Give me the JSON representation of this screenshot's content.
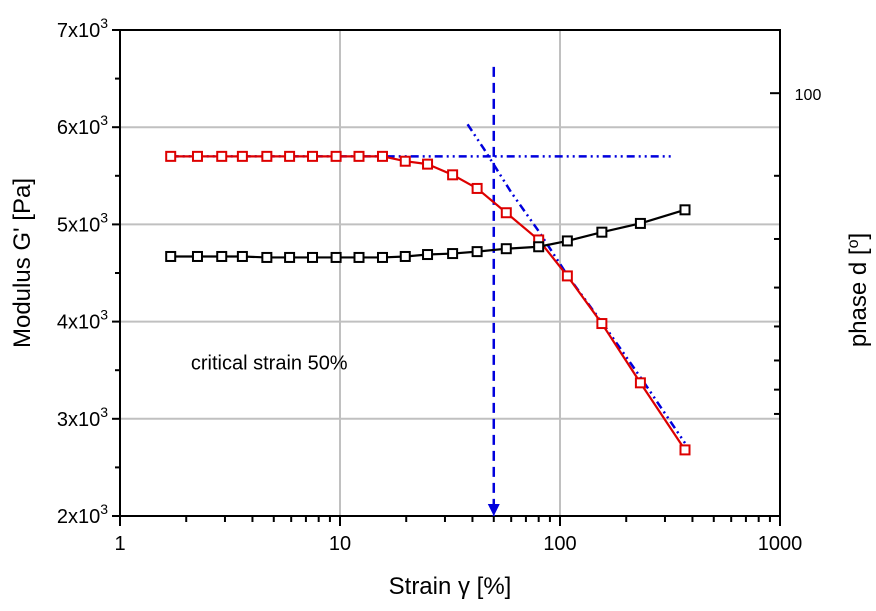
{
  "chart_data": {
    "type": "line",
    "xscale": "log",
    "xlim": [
      1,
      1000
    ],
    "ylim": [
      2000,
      7000
    ],
    "grid": true,
    "x_ticks": [
      1,
      10,
      100,
      1000
    ],
    "x_tick_labels": [
      "1",
      "10",
      "100",
      "1000"
    ],
    "y_ticks": [
      2000,
      3000,
      4000,
      5000,
      6000,
      7000
    ],
    "y_tick_labels": [
      {
        "base": "2x10",
        "exp": "3"
      },
      {
        "base": "3x10",
        "exp": "3"
      },
      {
        "base": "4x10",
        "exp": "3"
      },
      {
        "base": "5x10",
        "exp": "3"
      },
      {
        "base": "6x10",
        "exp": "3"
      },
      {
        "base": "7x10",
        "exp": "3"
      }
    ],
    "xlabel": "Strain γ [%]",
    "ylabel": "Modulus G' [Pa]",
    "y2label": {
      "text": "phase d [",
      "deg": "o",
      "close": "]"
    },
    "y2_tick": {
      "label": "100",
      "y_at": 6350
    },
    "annotation": {
      "text": "critical strain 50%",
      "x": 2.1,
      "y": 3580
    },
    "series": [
      {
        "color": "#dd0000",
        "marker": "open-square",
        "x": [
          1.7,
          2.25,
          2.9,
          3.6,
          4.65,
          5.9,
          7.5,
          9.6,
          12.2,
          15.6,
          19.8,
          25,
          32.5,
          42,
          57,
          80,
          108,
          155,
          232,
          370
        ],
        "y": [
          5700,
          5700,
          5700,
          5700,
          5700,
          5700,
          5700,
          5700,
          5700,
          5700,
          5650,
          5620,
          5510,
          5370,
          5120,
          4840,
          4470,
          3980,
          3370,
          2680
        ]
      },
      {
        "color": "#000000",
        "marker": "open-square",
        "x": [
          1.7,
          2.25,
          2.9,
          3.6,
          4.65,
          5.9,
          7.5,
          9.6,
          12.2,
          15.6,
          19.8,
          25,
          32.5,
          42,
          57,
          80,
          108,
          155,
          232,
          370
        ],
        "y": [
          4670,
          4670,
          4670,
          4670,
          4660,
          4660,
          4660,
          4660,
          4660,
          4660,
          4670,
          4690,
          4700,
          4720,
          4750,
          4770,
          4830,
          4920,
          5010,
          5150
        ]
      }
    ],
    "guides": [
      {
        "style": "dashdotdot",
        "color": "#0000dd",
        "x": [
          1.7,
          320
        ],
        "y": [
          5700,
          5700
        ]
      },
      {
        "style": "dashdotdot",
        "color": "#0000dd",
        "x": [
          38,
          45,
          60,
          80,
          110,
          160,
          240,
          370
        ],
        "y": [
          6030,
          5780,
          5330,
          4930,
          4450,
          3950,
          3380,
          2750
        ]
      },
      {
        "style": "dashed",
        "color": "#0000dd",
        "x": [
          50,
          50
        ],
        "y": [
          6620,
          2000
        ],
        "arrow": true
      }
    ]
  }
}
